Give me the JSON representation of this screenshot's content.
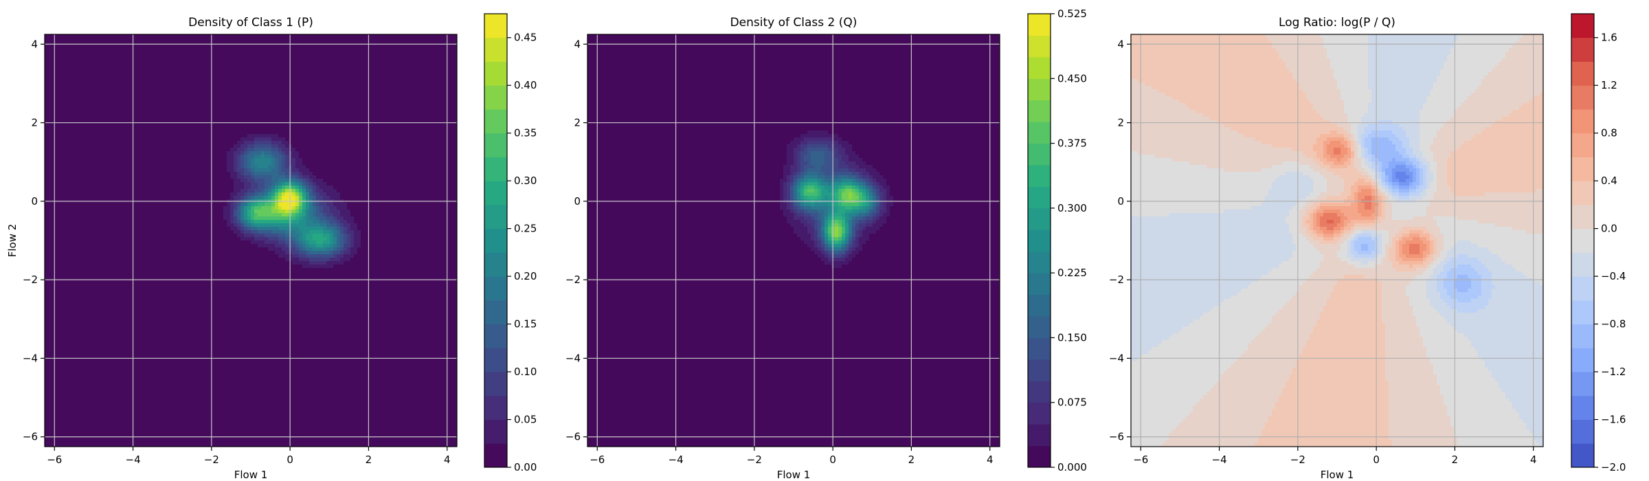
{
  "chart_data": [
    {
      "type": "contour",
      "title": "Density of Class 1 (P)",
      "xlabel": "Flow 1",
      "ylabel": "Flow 2",
      "xlim": [
        -6.25,
        4.25
      ],
      "ylim": [
        -6.25,
        4.25
      ],
      "xticks": [
        -6,
        -4,
        -2,
        0,
        2,
        4
      ],
      "yticks": [
        -6,
        -4,
        -2,
        0,
        2,
        4
      ],
      "grid": true,
      "colormap": "viridis",
      "colorbar": {
        "min": 0.0,
        "max": 0.475,
        "levels": 19,
        "ticks": [
          0.0,
          0.05,
          0.1,
          0.15,
          0.2,
          0.25,
          0.3,
          0.35,
          0.4,
          0.45
        ],
        "tick_labels": [
          "0.00",
          "0.05",
          "0.10",
          "0.15",
          "0.20",
          "0.25",
          "0.30",
          "0.35",
          "0.40",
          "0.45"
        ]
      },
      "bumps": [
        {
          "x": -0.7,
          "y": 1.0,
          "sx": 0.45,
          "sy": 0.35,
          "a": 0.22
        },
        {
          "x": 0.0,
          "y": 0.1,
          "sx": 0.3,
          "sy": 0.3,
          "a": 0.36
        },
        {
          "x": -0.9,
          "y": -0.3,
          "sx": 0.35,
          "sy": 0.3,
          "a": 0.24
        },
        {
          "x": 0.8,
          "y": -1.0,
          "sx": 0.45,
          "sy": 0.3,
          "a": 0.22
        },
        {
          "x": -0.3,
          "y": -0.3,
          "sx": 0.5,
          "sy": 0.4,
          "a": 0.2
        },
        {
          "x": 0.5,
          "y": -0.5,
          "sx": 0.6,
          "sy": 0.6,
          "a": 0.1
        }
      ]
    },
    {
      "type": "contour",
      "title": "Density of Class 2 (Q)",
      "xlabel": "Flow 1",
      "ylabel": "",
      "xlim": [
        -6.25,
        4.25
      ],
      "ylim": [
        -6.25,
        4.25
      ],
      "xticks": [
        -6,
        -4,
        -2,
        0,
        2,
        4
      ],
      "yticks": [
        -6,
        -4,
        -2,
        0,
        2,
        4
      ],
      "grid": true,
      "colormap": "viridis",
      "colorbar": {
        "min": 0.0,
        "max": 0.525,
        "levels": 21,
        "ticks": [
          0.0,
          0.075,
          0.15,
          0.225,
          0.3,
          0.375,
          0.45,
          0.525
        ],
        "tick_labels": [
          "0.000",
          "0.075",
          "0.150",
          "0.225",
          "0.300",
          "0.375",
          "0.450",
          "0.525"
        ]
      },
      "bumps": [
        {
          "x": -0.6,
          "y": 0.25,
          "sx": 0.3,
          "sy": 0.3,
          "a": 0.3
        },
        {
          "x": 0.35,
          "y": 0.2,
          "sx": 0.3,
          "sy": 0.3,
          "a": 0.26
        },
        {
          "x": 0.1,
          "y": -0.8,
          "sx": 0.25,
          "sy": 0.35,
          "a": 0.38
        },
        {
          "x": 0.8,
          "y": 0.0,
          "sx": 0.3,
          "sy": 0.3,
          "a": 0.2
        },
        {
          "x": -0.4,
          "y": 1.2,
          "sx": 0.4,
          "sy": 0.3,
          "a": 0.14
        },
        {
          "x": 0.0,
          "y": 0.0,
          "sx": 0.7,
          "sy": 0.7,
          "a": 0.12
        }
      ]
    },
    {
      "type": "contour",
      "title": "Log Ratio: log(P / Q)",
      "xlabel": "Flow 1",
      "ylabel": "",
      "xlim": [
        -6.25,
        4.25
      ],
      "ylim": [
        -6.25,
        4.25
      ],
      "xticks": [
        -6,
        -4,
        -2,
        0,
        2,
        4
      ],
      "yticks": [
        -6,
        -4,
        -2,
        0,
        2,
        4
      ],
      "grid": true,
      "colormap": "coolwarm",
      "colorbar": {
        "min": -2.0,
        "max": 1.8,
        "levels": 19,
        "ticks": [
          -2.0,
          -1.6,
          -1.2,
          -0.8,
          -0.4,
          0.0,
          0.4,
          0.8,
          1.2,
          1.6
        ],
        "tick_labels": [
          "−2.0",
          "−1.6",
          "−1.2",
          "−0.8",
          "−0.4",
          "0.0",
          "0.4",
          "0.8",
          "1.2",
          "1.6"
        ]
      },
      "bumps": [
        {
          "x": -1.2,
          "y": -0.5,
          "sx": 0.45,
          "sy": 0.35,
          "a": 1.4
        },
        {
          "x": -0.9,
          "y": 1.3,
          "sx": 0.35,
          "sy": 0.3,
          "a": 1.0
        },
        {
          "x": 1.0,
          "y": -1.2,
          "sx": 0.4,
          "sy": 0.35,
          "a": 1.3
        },
        {
          "x": -0.2,
          "y": 0.0,
          "sx": 0.3,
          "sy": 0.45,
          "a": 1.1
        },
        {
          "x": 0.7,
          "y": 0.6,
          "sx": 0.45,
          "sy": 0.35,
          "a": -1.5
        },
        {
          "x": -0.3,
          "y": -1.1,
          "sx": 0.35,
          "sy": 0.35,
          "a": -1.1
        },
        {
          "x": 0.0,
          "y": 1.4,
          "sx": 0.5,
          "sy": 0.35,
          "a": -0.8
        },
        {
          "x": 2.2,
          "y": -2.1,
          "sx": 0.45,
          "sy": 0.45,
          "a": -0.6
        },
        {
          "x": -2.0,
          "y": 0.5,
          "sx": 0.5,
          "sy": 0.4,
          "a": -0.4
        }
      ]
    }
  ]
}
